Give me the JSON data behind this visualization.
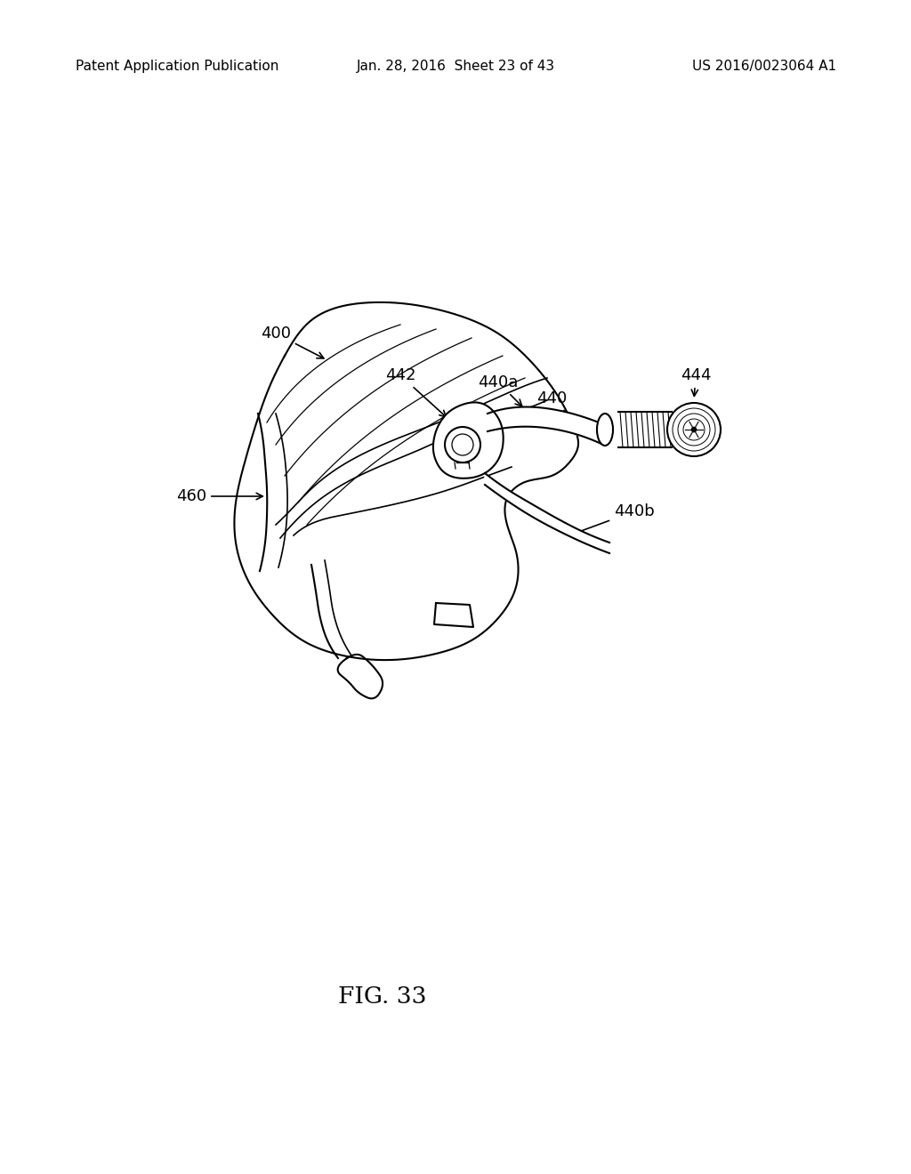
{
  "background_color": "#ffffff",
  "header_left": "Patent Application Publication",
  "header_center": "Jan. 28, 2016  Sheet 23 of 43",
  "header_right": "US 2016/0023064 A1",
  "figure_label": "FIG. 33",
  "line_color": "#000000",
  "text_color": "#000000",
  "header_fontsize": 11,
  "label_fontsize": 13,
  "fig_label_fontsize": 19
}
